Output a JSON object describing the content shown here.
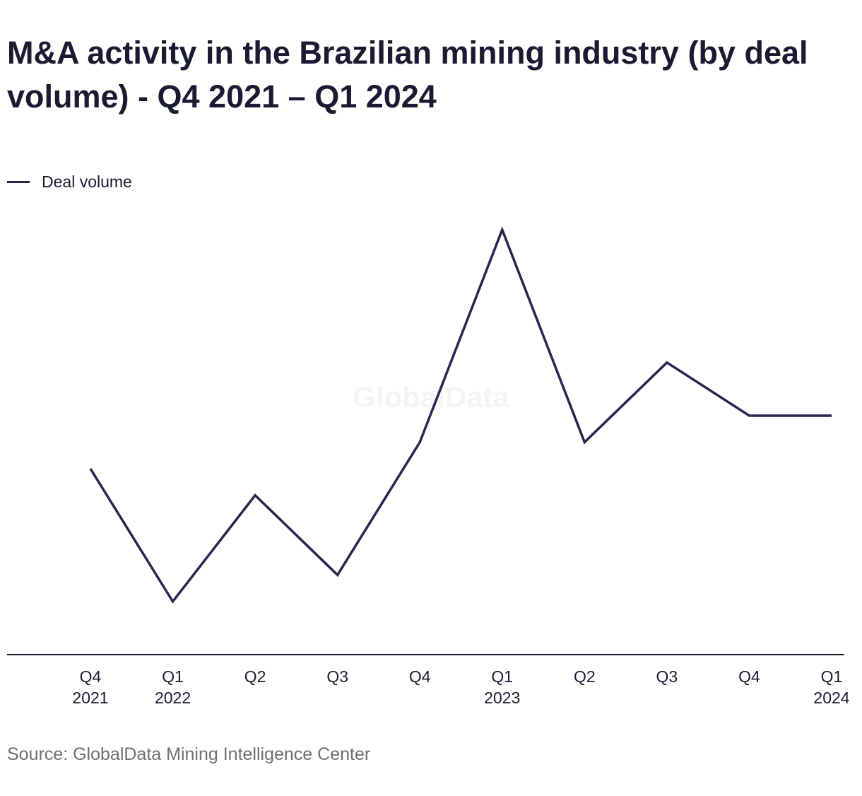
{
  "chart_data": {
    "type": "line",
    "title": "M&A activity in the Brazilian mining industry (by deal volume) - Q4 2021 – Q1 2024",
    "categories": [
      "Q4 2021",
      "Q1 2022",
      "Q2",
      "Q3",
      "Q4",
      "Q1 2023",
      "Q2",
      "Q3",
      "Q4",
      "Q1 2024"
    ],
    "series": [
      {
        "name": "Deal volume",
        "color": "#2e2250",
        "values": [
          7,
          2,
          6,
          3,
          8,
          16,
          8,
          11,
          9,
          9
        ]
      }
    ],
    "ylim": [
      0,
      16
    ],
    "watermark": "GlobalData",
    "source": "Source: GlobalData Mining Intelligence Center"
  }
}
